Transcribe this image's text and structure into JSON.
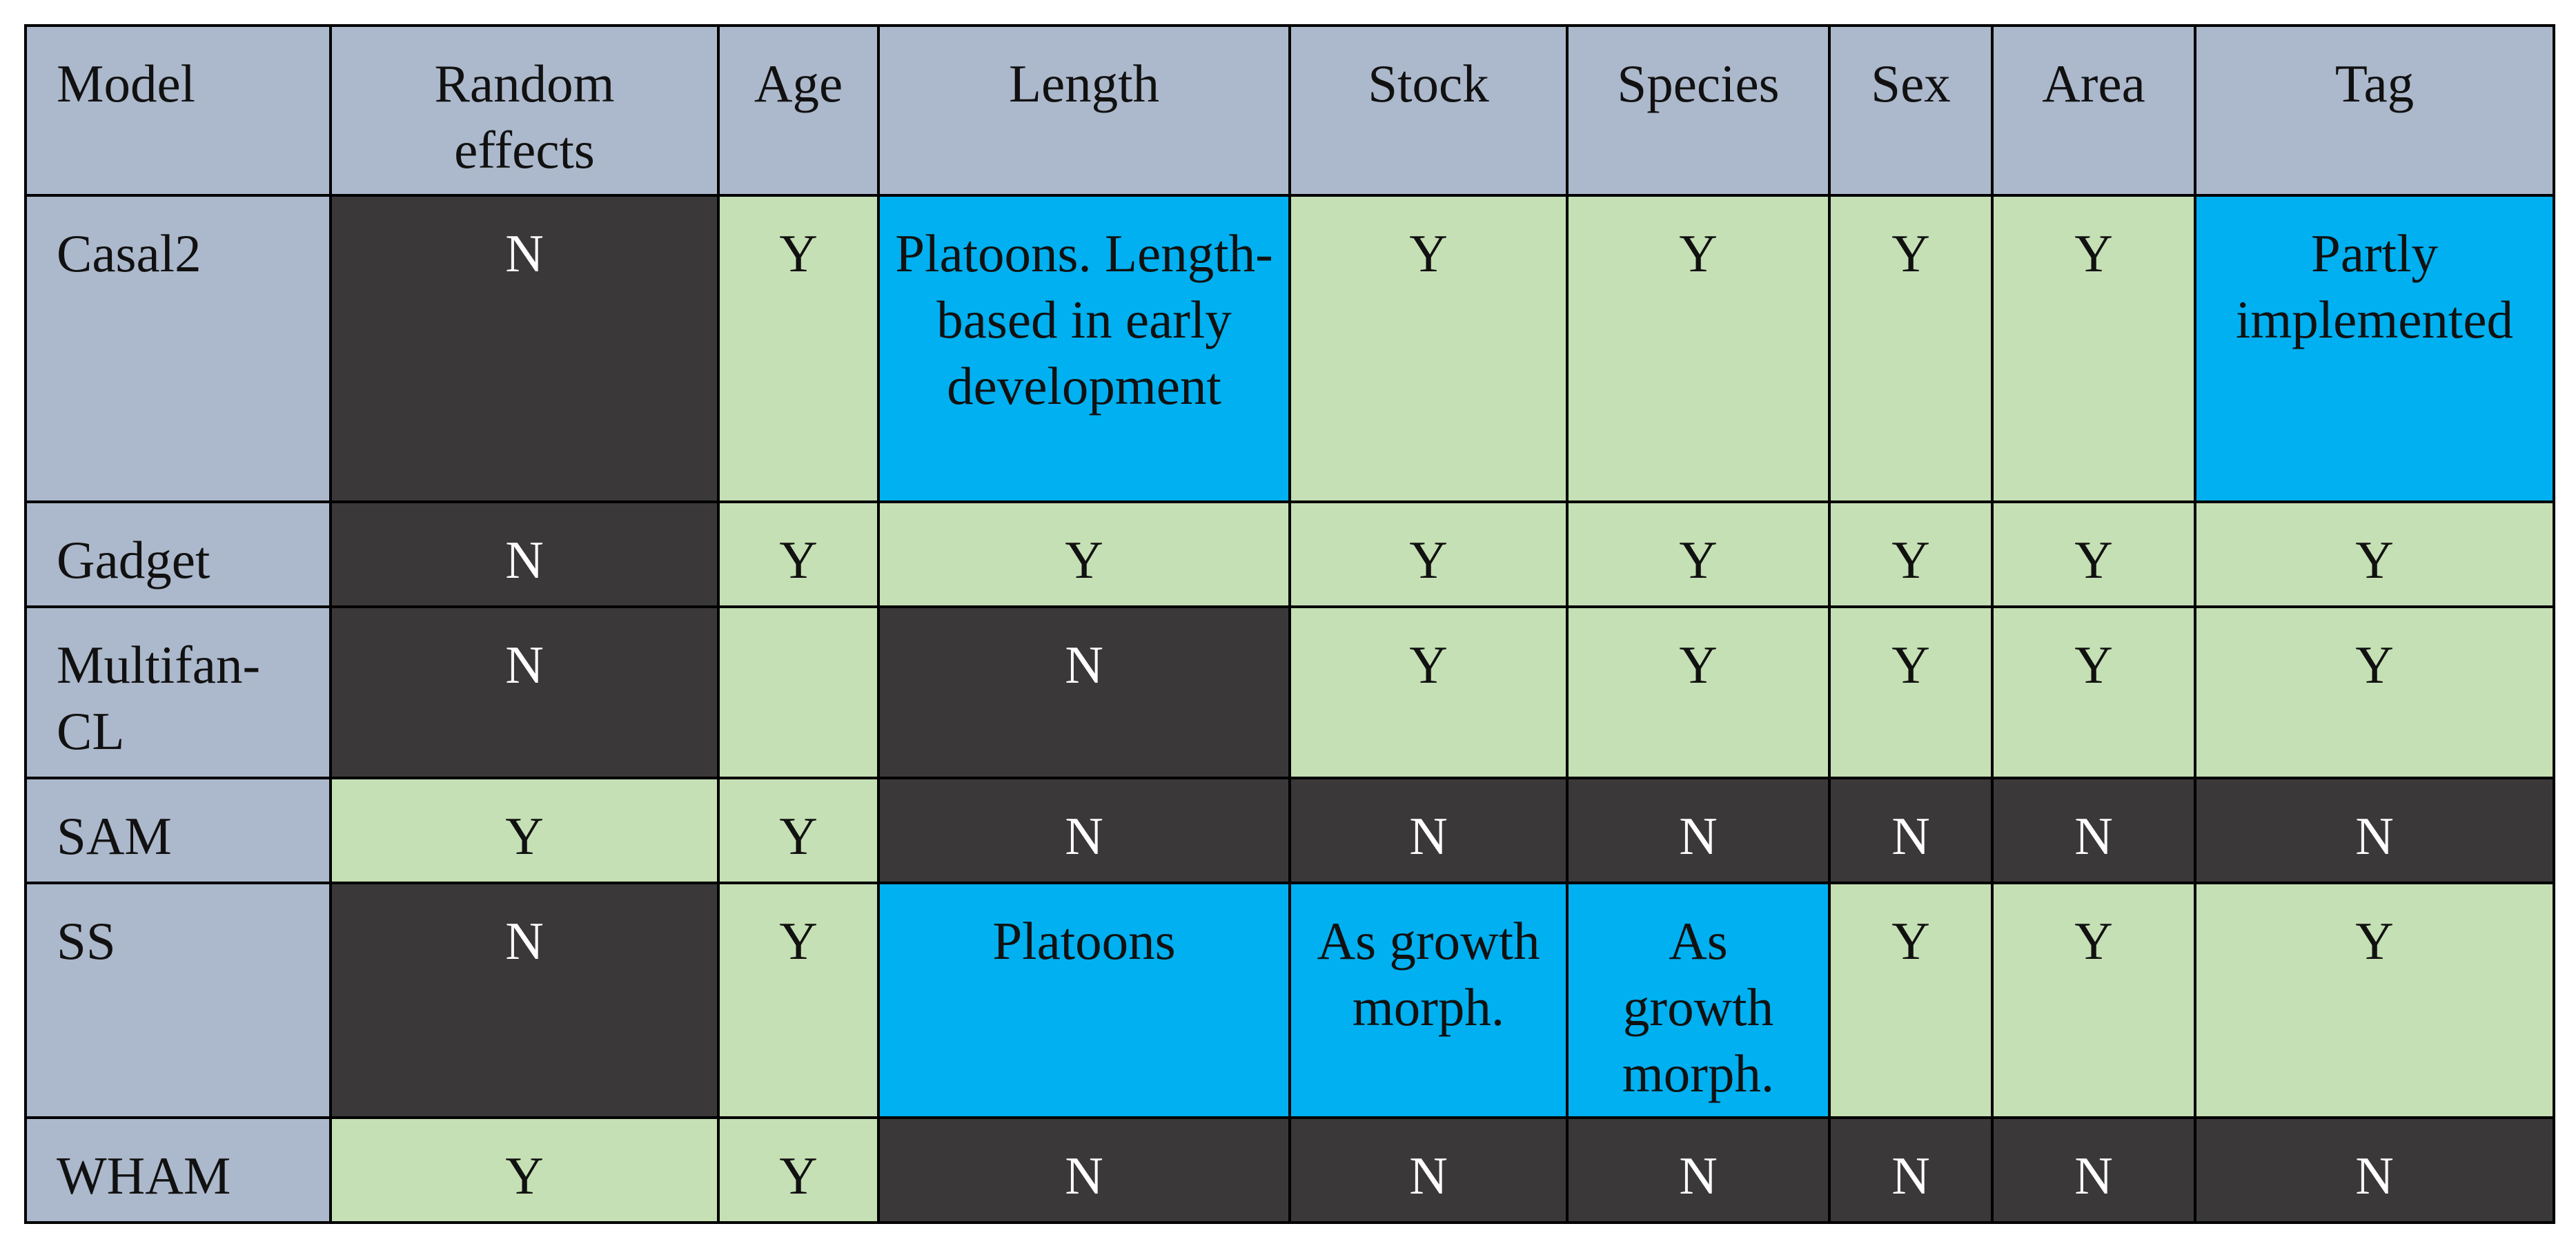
{
  "table": {
    "headers": [
      "Model",
      "Random effects",
      "Age",
      "Length",
      "Stock",
      "Species",
      "Sex",
      "Area",
      "Tag"
    ],
    "rows": [
      {
        "model": "Casal2",
        "cells": [
          {
            "text": "N",
            "kind": "no"
          },
          {
            "text": "Y",
            "kind": "yes"
          },
          {
            "text": "Platoons. Length-based in early development",
            "kind": "partial"
          },
          {
            "text": "Y",
            "kind": "yes"
          },
          {
            "text": "Y",
            "kind": "yes"
          },
          {
            "text": "Y",
            "kind": "yes"
          },
          {
            "text": "Y",
            "kind": "yes"
          },
          {
            "text": "Partly implemented",
            "kind": "partial"
          }
        ]
      },
      {
        "model": "Gadget",
        "cells": [
          {
            "text": "N",
            "kind": "no"
          },
          {
            "text": "Y",
            "kind": "yes"
          },
          {
            "text": "Y",
            "kind": "yes"
          },
          {
            "text": "Y",
            "kind": "yes"
          },
          {
            "text": "Y",
            "kind": "yes"
          },
          {
            "text": "Y",
            "kind": "yes"
          },
          {
            "text": "Y",
            "kind": "yes"
          },
          {
            "text": "Y",
            "kind": "yes"
          }
        ]
      },
      {
        "model": "Multifan-CL",
        "cells": [
          {
            "text": "N",
            "kind": "no"
          },
          {
            "text": "",
            "kind": "empty"
          },
          {
            "text": "N",
            "kind": "no"
          },
          {
            "text": "Y",
            "kind": "yes"
          },
          {
            "text": "Y",
            "kind": "yes"
          },
          {
            "text": "Y",
            "kind": "yes"
          },
          {
            "text": "Y",
            "kind": "yes"
          },
          {
            "text": "Y",
            "kind": "yes"
          }
        ]
      },
      {
        "model": "SAM",
        "cells": [
          {
            "text": "Y",
            "kind": "yes"
          },
          {
            "text": "Y",
            "kind": "yes"
          },
          {
            "text": "N",
            "kind": "no"
          },
          {
            "text": "N",
            "kind": "no"
          },
          {
            "text": "N",
            "kind": "no"
          },
          {
            "text": "N",
            "kind": "no"
          },
          {
            "text": "N",
            "kind": "no"
          },
          {
            "text": "N",
            "kind": "no"
          }
        ]
      },
      {
        "model": "SS",
        "cells": [
          {
            "text": "N",
            "kind": "no"
          },
          {
            "text": "Y",
            "kind": "yes"
          },
          {
            "text": "Platoons",
            "kind": "partial"
          },
          {
            "text": "As growth morph.",
            "kind": "partial"
          },
          {
            "text": "As growth morph.",
            "kind": "partial"
          },
          {
            "text": "Y",
            "kind": "yes"
          },
          {
            "text": "Y",
            "kind": "yes"
          },
          {
            "text": "Y",
            "kind": "yes"
          }
        ]
      },
      {
        "model": "WHAM",
        "cells": [
          {
            "text": "Y",
            "kind": "yes"
          },
          {
            "text": "Y",
            "kind": "yes"
          },
          {
            "text": "N",
            "kind": "no"
          },
          {
            "text": "N",
            "kind": "no"
          },
          {
            "text": "N",
            "kind": "no"
          },
          {
            "text": "N",
            "kind": "no"
          },
          {
            "text": "N",
            "kind": "no"
          },
          {
            "text": "N",
            "kind": "no"
          }
        ]
      }
    ]
  },
  "colors": {
    "header_bg": "#acb8cb",
    "yes_bg": "#c5e0b4",
    "no_bg": "#3a3838",
    "partial_bg": "#00b0f0"
  }
}
